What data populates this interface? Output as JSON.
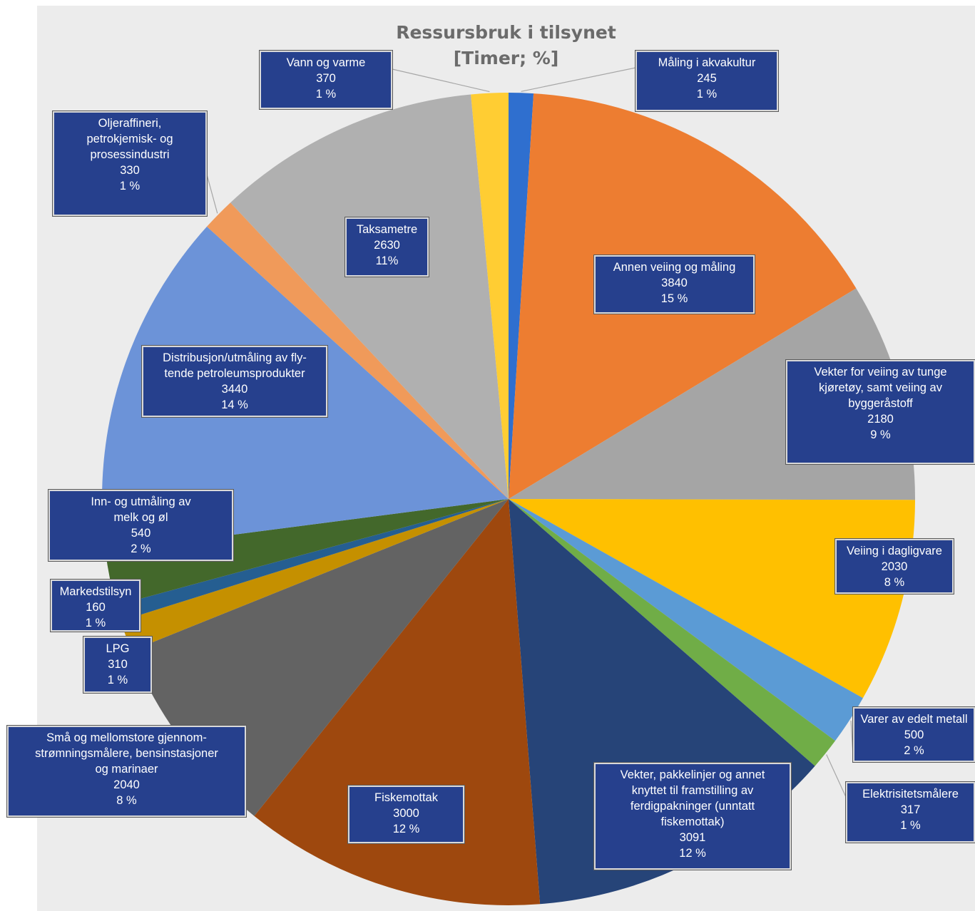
{
  "chart_data": {
    "type": "pie",
    "title": [
      "Ressursbruk i tilsynet",
      "[Timer; %]"
    ],
    "slices": [
      {
        "label": "Måling i akvakultur",
        "value": 245,
        "percent": "1 %",
        "color": "#2f6fcf"
      },
      {
        "label": "Annen veiing og måling",
        "value": 3840,
        "percent": "15 %",
        "color": "#ed7d31"
      },
      {
        "label": "Vekter for veiing av tunge kjøretøy, samt veiing av byggeråstoff",
        "value": 2180,
        "percent": "9 %",
        "color": "#a5a5a5"
      },
      {
        "label": "Veiing i dagligvare",
        "value": 2030,
        "percent": "8 %",
        "color": "#ffc000"
      },
      {
        "label": "Varer av edelt metall",
        "value": 500,
        "percent": "2 %",
        "color": "#5b9bd5"
      },
      {
        "label": "Elektrisitetsmålere",
        "value": 317,
        "percent": "1 %",
        "color": "#70ad47"
      },
      {
        "label": "Vekter, pakkelinjer og annet knyttet til framstilling av ferdigpakninger (unntatt fiskemottak)",
        "value": 3091,
        "percent": "12 %",
        "color": "#264478"
      },
      {
        "label": "Fiskemottak",
        "value": 3000,
        "percent": "12 %",
        "color": "#9e480e"
      },
      {
        "label": "Små og mellomstore gjennom-strømningsmålere, bensinstasjoner og marinaer",
        "value": 2040,
        "percent": "8 %",
        "color": "#636363"
      },
      {
        "label": "LPG",
        "value": 310,
        "percent": "1 %",
        "color": "#c59000"
      },
      {
        "label": "Markedstilsyn",
        "value": 160,
        "percent": "1 %",
        "color": "#255e91"
      },
      {
        "label": "Inn- og utmåling av melk og øl",
        "value": 540,
        "percent": "2 %",
        "color": "#43682b"
      },
      {
        "label": "Distribusjon/utmåling av fly-tende petroleumsprodukter",
        "value": 3440,
        "percent": "14 %",
        "color": "#6c93d8"
      },
      {
        "label": "Oljeraffineri, petrokjemisk- og prosessindustri",
        "value": 330,
        "percent": "1 %",
        "color": "#f09a5a"
      },
      {
        "label": "Taksametre",
        "value": 2630,
        "percent": "11%",
        "color": "#b0b0b0"
      },
      {
        "label": "Vann og varme",
        "value": 370,
        "percent": "1 %",
        "color": "#ffcd33"
      }
    ],
    "data_labels": [
      "Måling i akvakultur\n245\n1 %",
      "Annen veiing og måling\n3840\n15 %",
      "Vekter for veiing av tunge\nkjøretøy, samt veiing av\nbyggeråstoff\n2180\n9 %",
      "Veiing i dagligvare\n2030\n8 %",
      "Varer av edelt metall\n500\n2 %",
      "Elektrisitetsmålere\n317\n1 %",
      "Vekter, pakkelinjer og annet\nknyttet til framstilling av\nferdigpakninger (unntatt\nfiskemottak)\n3091\n12 %",
      "Fiskemottak\n3000\n12 %",
      "Små og mellomstore gjennom-\nstrømningsmålere, bensinstasjoner\nog marinaer\n2040\n8 %",
      "LPG\n310\n1 %",
      "Markedstilsyn\n160\n1 %",
      "Inn- og utmåling av\nmelk og øl\n540\n2 %",
      "Distribusjon/utmåling av fly-\ntende petroleumsprodukter\n3440\n14 %",
      "Oljeraffineri,\npetrokjemisk- og\nprosessindustri\n330\n1 %",
      "Taksametre\n2630\n11%",
      "Vann og varme\n370\n1 %"
    ],
    "legend": "none"
  }
}
